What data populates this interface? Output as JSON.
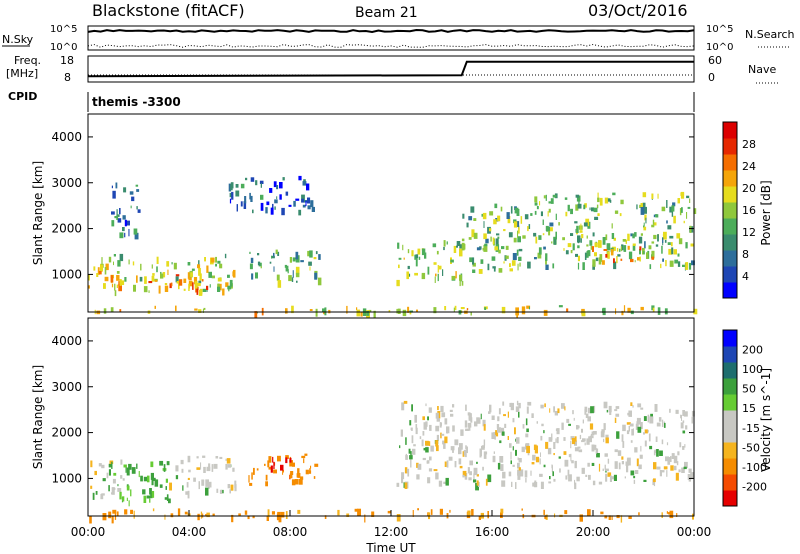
{
  "header": {
    "station": "Blackstone (fitACF)",
    "beam": "Beam 21",
    "date": "03/Oct/2016"
  },
  "aux_labels": {
    "nsky": "N.Sky",
    "nsearch": "N.Search",
    "freq_line1": "Freq.",
    "freq_line2": "[MHz]",
    "nave": "Nave",
    "cpid": "CPID",
    "cpid_value": "themis -3300",
    "nsky_tick_top": "10^5",
    "nsky_tick_bottom": "10^0",
    "nsearch_tick_top": "10^5",
    "nsearch_tick_bottom": "10^0",
    "freq_tick_top": "18",
    "freq_tick_bottom": "8",
    "nave_tick_top": "60",
    "nave_tick_bottom": "0"
  },
  "colors": {
    "power": [
      "#0000ff",
      "#1e46b4",
      "#2d6e9b",
      "#3a8c6e",
      "#4cad5a",
      "#8fc83c",
      "#e6dc1e",
      "#f5a50a",
      "#f56e00",
      "#e62800",
      "#dc0000"
    ],
    "velocity": [
      "#e60000",
      "#f54b00",
      "#f58c00",
      "#f5b41e",
      "#c8c8c3",
      "#c8c8c3",
      "#66cc33",
      "#3ca03c",
      "#1e6e6e",
      "#1e46b4",
      "#0000ff"
    ]
  },
  "chart_data": [
    {
      "type": "heatmap",
      "name": "Power",
      "ylabel": "Slant Range [km]",
      "yticks": [
        "1000",
        "2000",
        "3000",
        "4000"
      ],
      "ylim": [
        180,
        4500
      ],
      "colorbar_label": "Power [dB]",
      "colorbar_ticks": [
        "4",
        "8",
        "12",
        "16",
        "20",
        "24",
        "28"
      ],
      "colorbar_range": [
        0,
        32
      ],
      "echo_regions": [
        {
          "t0": 0.0,
          "t1": 1.3,
          "r0": 700,
          "r1": 1500,
          "level": 20
        },
        {
          "t0": 0.9,
          "t1": 2.0,
          "r0": 1900,
          "r1": 3100,
          "level": 8
        },
        {
          "t0": 1.0,
          "t1": 5.8,
          "r0": 650,
          "r1": 1450,
          "level": 17
        },
        {
          "t0": 2.3,
          "t1": 5.0,
          "r0": 700,
          "r1": 1050,
          "level": 22
        },
        {
          "t0": 6.3,
          "t1": 9.2,
          "r0": 850,
          "r1": 1550,
          "level": 13
        },
        {
          "t0": 5.5,
          "t1": 9.0,
          "r0": 2400,
          "r1": 3150,
          "level": 6
        },
        {
          "t0": 12.2,
          "t1": 14.8,
          "r0": 850,
          "r1": 1750,
          "level": 15
        },
        {
          "t0": 14.8,
          "t1": 17.5,
          "r0": 1100,
          "r1": 2600,
          "level": 14
        },
        {
          "t0": 17.5,
          "t1": 24.0,
          "r0": 1200,
          "r1": 2800,
          "level": 14
        },
        {
          "t0": 19.8,
          "t1": 22.5,
          "r0": 1300,
          "r1": 1650,
          "level": 22
        },
        {
          "t0": 0.0,
          "t1": 24.0,
          "r0": 180,
          "r1": 330,
          "level": 18
        }
      ]
    },
    {
      "type": "heatmap",
      "name": "Velocity",
      "ylabel": "Slant Range [km]",
      "yticks": [
        "1000",
        "2000",
        "3000",
        "4000"
      ],
      "ylim": [
        180,
        4500
      ],
      "xlabel": "Time UT",
      "xticks": [
        "00:00",
        "04:00",
        "08:00",
        "12:00",
        "16:00",
        "20:00",
        "00:00"
      ],
      "xlim": [
        0,
        24
      ],
      "colorbar_label": "Velocity [m s^-1]",
      "colorbar_ticks": [
        "-200",
        "-100",
        "-50",
        "-15",
        "15",
        "50",
        "100",
        "200"
      ],
      "echo_regions": [
        {
          "t0": 0.0,
          "t1": 1.4,
          "r0": 650,
          "r1": 1450,
          "v": 0
        },
        {
          "t0": 1.0,
          "t1": 3.2,
          "r0": 500,
          "r1": 1400,
          "v": 40
        },
        {
          "t0": 3.2,
          "t1": 5.8,
          "r0": 700,
          "r1": 1500,
          "v": 0
        },
        {
          "t0": 6.3,
          "t1": 9.2,
          "r0": 900,
          "r1": 1550,
          "v": -60
        },
        {
          "t0": 7.2,
          "t1": 8.0,
          "r0": 1250,
          "r1": 1500,
          "v": -200
        },
        {
          "t0": 12.2,
          "t1": 24.0,
          "r0": 900,
          "r1": 2700,
          "v": 0
        },
        {
          "t0": 0.0,
          "t1": 24.0,
          "r0": 180,
          "r1": 350,
          "v": -40
        }
      ]
    },
    {
      "type": "line",
      "name": "Freq",
      "x": [
        0,
        14.8,
        15.0,
        24
      ],
      "y": [
        10.2,
        10.6,
        15.8,
        15.8
      ]
    },
    {
      "type": "line",
      "name": "N.Sky",
      "x": [
        0,
        24
      ],
      "y": [
        40000,
        40000
      ]
    }
  ]
}
